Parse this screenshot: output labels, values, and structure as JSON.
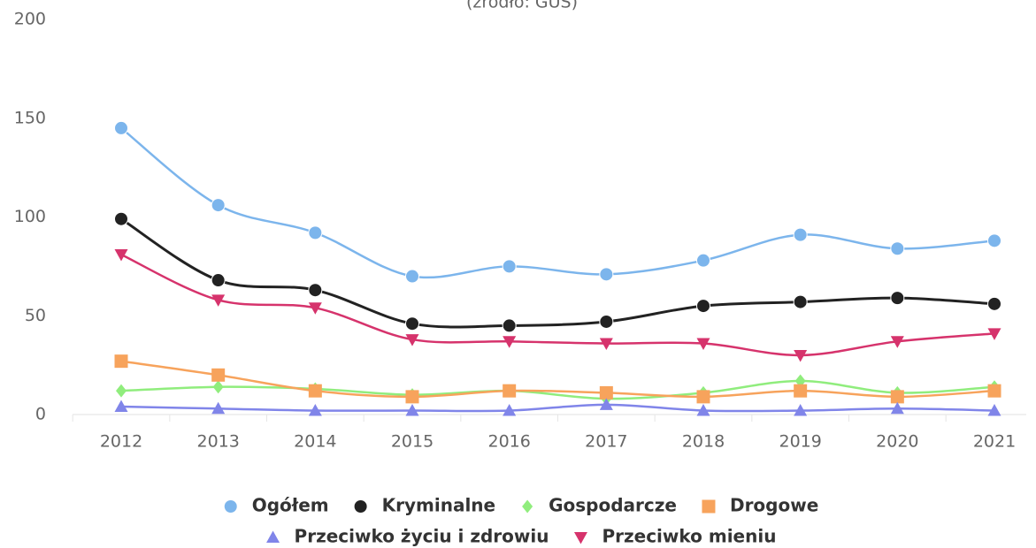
{
  "chart_data": {
    "type": "line",
    "subtitle": "(źródło: GUS)",
    "categories": [
      "2012",
      "2013",
      "2014",
      "2015",
      "2016",
      "2017",
      "2018",
      "2019",
      "2020",
      "2021"
    ],
    "series": [
      {
        "name": "Ogółem",
        "color": "#7cb5ec",
        "symbol": "circle",
        "values": [
          145,
          106,
          92,
          70,
          75,
          71,
          78,
          91,
          84,
          88
        ]
      },
      {
        "name": "Kryminalne",
        "color": "#222222",
        "symbol": "circle",
        "values": [
          99,
          68,
          63,
          46,
          45,
          47,
          55,
          57,
          59,
          56
        ]
      },
      {
        "name": "Gospodarcze",
        "color": "#90ed7d",
        "symbol": "diamond",
        "values": [
          12,
          14,
          13,
          10,
          12,
          8,
          11,
          17,
          11,
          14
        ]
      },
      {
        "name": "Drogowe",
        "color": "#f7a35c",
        "symbol": "square",
        "values": [
          27,
          20,
          12,
          9,
          12,
          11,
          9,
          12,
          9,
          12
        ]
      },
      {
        "name": "Przeciwko życiu i zdrowiu",
        "color": "#8085e9",
        "symbol": "triangle",
        "values": [
          4,
          3,
          2,
          2,
          2,
          5,
          2,
          2,
          3,
          2
        ]
      },
      {
        "name": "Przeciwko mieniu",
        "color": "#d6336c",
        "symbol": "triangle-down",
        "values": [
          81,
          58,
          54,
          38,
          37,
          36,
          36,
          30,
          37,
          41
        ]
      }
    ],
    "ylim": [
      0,
      200
    ],
    "yticks": [
      0,
      50,
      100,
      150,
      200
    ],
    "grid": false
  }
}
